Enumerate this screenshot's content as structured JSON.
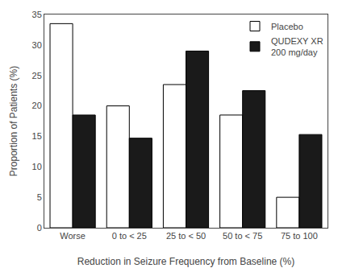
{
  "chart_data": {
    "type": "bar",
    "xlabel": "Reduction in Seizure Frequency from Baseline (%)",
    "ylabel": "Proportion of Patients (%)",
    "categories": [
      "Worse",
      "0 to < 25",
      "25 to < 50",
      "50 to < 75",
      "75 to 100"
    ],
    "series": [
      {
        "name": "Placebo",
        "color": "#ffffff",
        "values": [
          33.5,
          20.0,
          23.5,
          18.5,
          5.0
        ]
      },
      {
        "name": "QUDEXY XR\n200 mg/day",
        "color": "#1a1a1a",
        "values": [
          18.5,
          14.7,
          29.0,
          22.5,
          15.3
        ]
      }
    ],
    "ylim": [
      0,
      35
    ],
    "yticks": [
      0,
      5,
      10,
      15,
      20,
      25,
      30,
      35
    ],
    "grid": false,
    "legend": "upper right"
  }
}
